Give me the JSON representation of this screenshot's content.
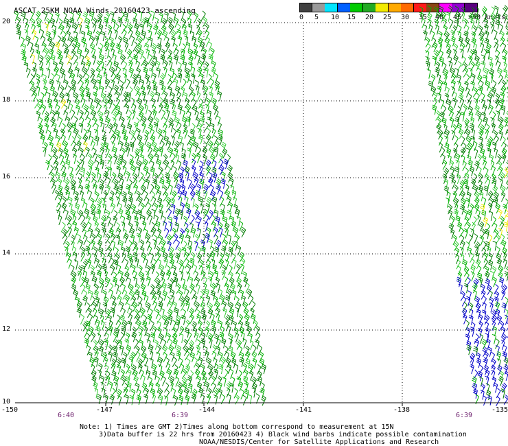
{
  "title": "ASCAT 25KM NOAA Winds 20160423 ascending",
  "legend": {
    "labels": [
      "0",
      "5",
      "10",
      "15",
      "20",
      "25",
      "30",
      "35",
      "40",
      "45",
      ">50 knots"
    ],
    "colors": [
      "#404040",
      "#9a9a9a",
      "#00e5ff",
      "#0060ff",
      "#00cc00",
      "#22aa22",
      "#f2ea00",
      "#ffaa00",
      "#ff6a00",
      "#ff1a1a",
      "#8b4513",
      "#ff00ff",
      "#9400d3",
      "#5a0080"
    ]
  },
  "axes": {
    "lat_labels": [
      "20",
      "18",
      "16",
      "14",
      "12",
      "10"
    ],
    "lon_labels": [
      "-150",
      "-147",
      "-144",
      "-141",
      "-138",
      "-135"
    ]
  },
  "pass_times": [
    "6:40",
    "6:39",
    "6:39"
  ],
  "notes": [
    "Note: 1) Times are GMT 2)Times along bottom correspond to measurement at 15N",
    "3)Data buffer is 22 hrs from 20160423 4) Black wind barbs indicate possible contamination",
    "NOAA/NESDIS/Center for Satellite Applications and Research"
  ],
  "barb_colors": {
    "green_dark": "#007a00",
    "green": "#00b000",
    "green_light": "#33cc33",
    "yellow": "#f2ea00",
    "blue": "#0000c8"
  }
}
